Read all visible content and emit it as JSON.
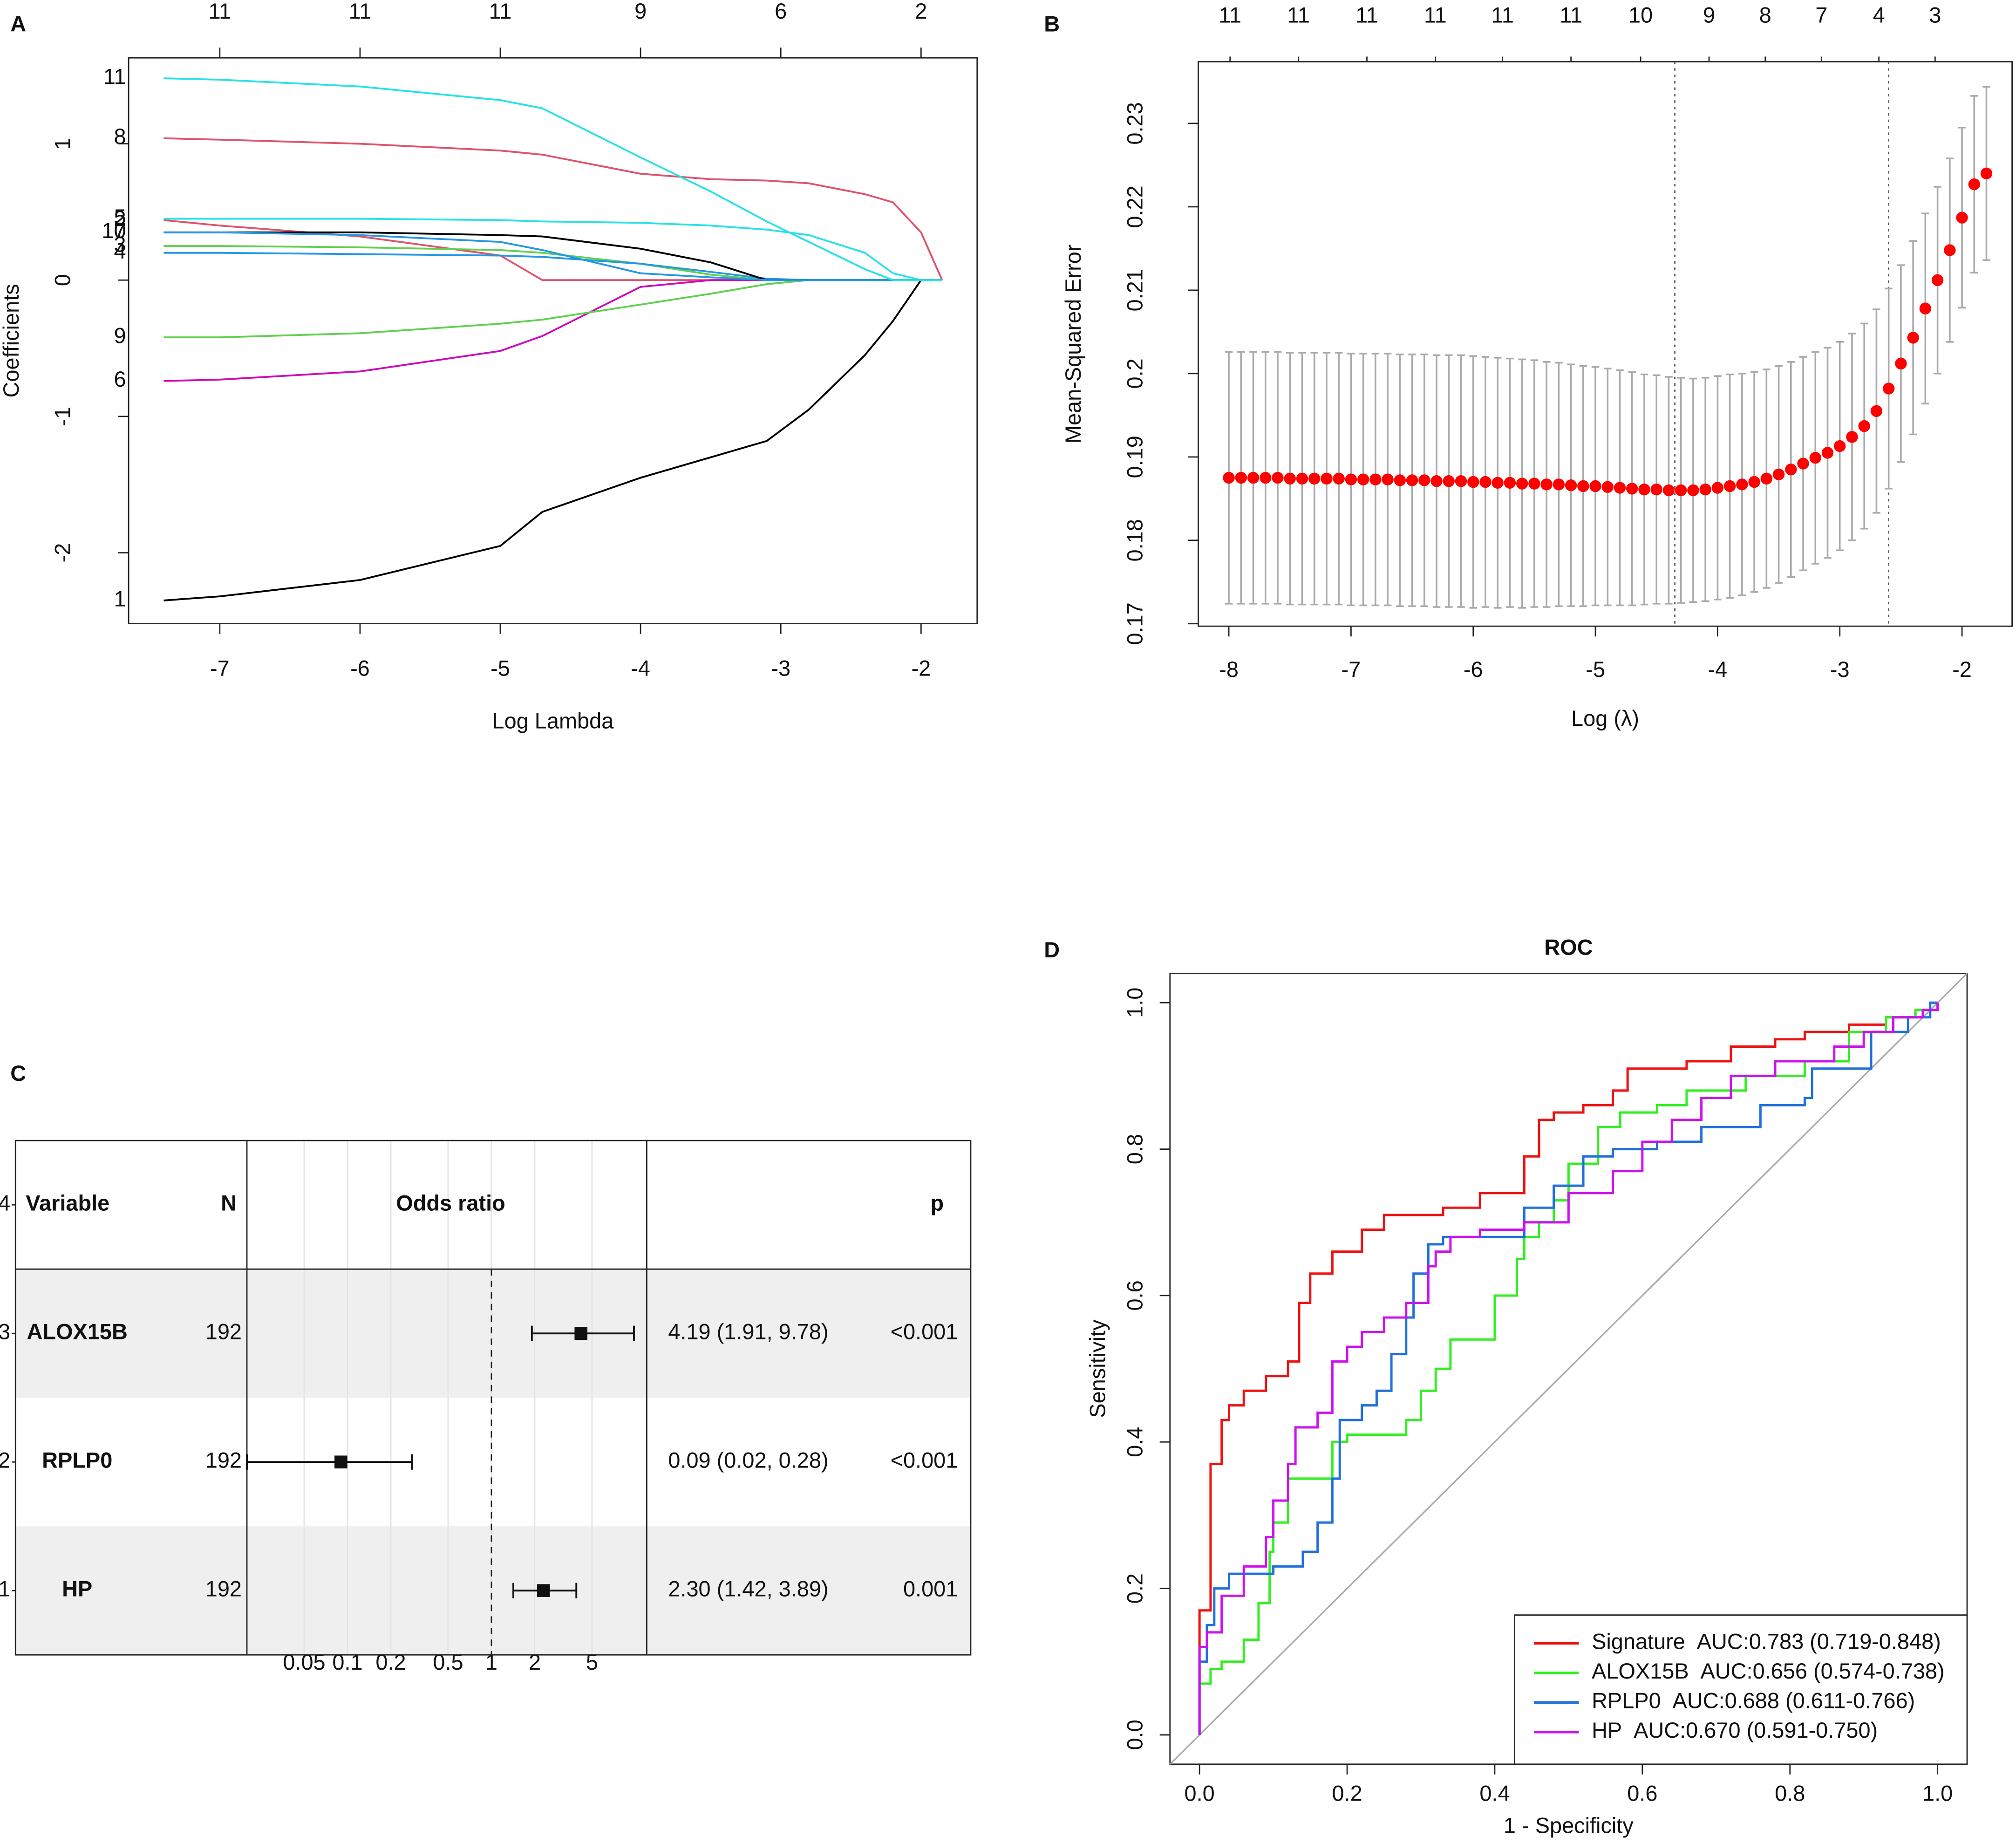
{
  "chart_data": [
    {
      "panel": "A",
      "type": "line",
      "xlabel": "Log Lambda",
      "ylabel": "Coefficients",
      "xlim": [
        -7.65,
        -1.6
      ],
      "ylim": [
        -2.52,
        1.63
      ],
      "xticks": [
        -7,
        -6,
        -5,
        -4,
        -3,
        -2
      ],
      "yticks": [
        -2,
        -1,
        0,
        1
      ],
      "x2ticks": [
        {
          "value": -7,
          "label": "11"
        },
        {
          "value": -6,
          "label": "11"
        },
        {
          "value": -5,
          "label": "11"
        },
        {
          "value": -4,
          "label": "9"
        },
        {
          "value": -3,
          "label": "6"
        },
        {
          "value": -2,
          "label": "2"
        }
      ],
      "x": [
        -7.4,
        -7,
        -6,
        -5,
        -4.7,
        -4,
        -3.5,
        -3.1,
        -2.8,
        -2.4,
        -2.2,
        -2,
        -1.85
      ],
      "series": [
        {
          "name": "1",
          "color": "#000000",
          "values": [
            -2.35,
            -2.32,
            -2.2,
            -1.95,
            -1.7,
            -1.45,
            -1.3,
            -1.18,
            -0.95,
            -0.55,
            -0.3,
            0,
            0
          ]
        },
        {
          "name": "2",
          "color": "#DF536B",
          "values": [
            0.44,
            0.4,
            0.32,
            0.18,
            0,
            0,
            0,
            0,
            0,
            0,
            0,
            0,
            0
          ]
        },
        {
          "name": "3",
          "color": "#61D04F",
          "values": [
            0.25,
            0.25,
            0.24,
            0.22,
            0.2,
            0.12,
            0.04,
            0,
            0,
            0,
            0,
            0,
            0
          ]
        },
        {
          "name": "4",
          "color": "#2297E6",
          "values": [
            0.2,
            0.2,
            0.19,
            0.18,
            0.17,
            0.12,
            0.06,
            0.01,
            0,
            0,
            0,
            0,
            0
          ]
        },
        {
          "name": "5",
          "color": "#28E2E5",
          "values": [
            0.45,
            0.45,
            0.45,
            0.44,
            0.43,
            0.42,
            0.4,
            0.37,
            0.33,
            0.2,
            0.05,
            0,
            0
          ]
        },
        {
          "name": "6",
          "color": "#CD0BBC",
          "values": [
            -0.74,
            -0.73,
            -0.67,
            -0.52,
            -0.41,
            -0.05,
            0,
            0,
            0,
            0,
            0,
            0,
            0
          ]
        },
        {
          "name": "7",
          "color": "#000000",
          "values": [
            0.35,
            0.35,
            0.35,
            0.33,
            0.32,
            0.23,
            0.13,
            0,
            0,
            0,
            0,
            0,
            0
          ]
        },
        {
          "name": "8",
          "color": "#DF536B",
          "values": [
            1.04,
            1.03,
            1.0,
            0.95,
            0.92,
            0.78,
            0.74,
            0.73,
            0.71,
            0.63,
            0.57,
            0.35,
            0
          ]
        },
        {
          "name": "9",
          "color": "#61D04F",
          "values": [
            -0.42,
            -0.42,
            -0.39,
            -0.32,
            -0.29,
            -0.18,
            -0.1,
            -0.03,
            0,
            0,
            0,
            0,
            0
          ]
        },
        {
          "name": "10",
          "color": "#2297E6",
          "values": [
            0.35,
            0.35,
            0.33,
            0.28,
            0.22,
            0.05,
            0.02,
            0,
            0,
            0,
            0,
            0,
            0
          ]
        },
        {
          "name": "11",
          "color": "#28E2E5",
          "values": [
            1.48,
            1.47,
            1.42,
            1.32,
            1.26,
            0.9,
            0.65,
            0.43,
            0.28,
            0.08,
            0,
            0,
            0
          ]
        }
      ]
    },
    {
      "panel": "B",
      "type": "errorbar",
      "xlabel": "Log (λ)",
      "ylabel": "Mean-Squared Error",
      "xlim": [
        -8.25,
        -1.59
      ],
      "ylim": [
        0.1697,
        0.2374
      ],
      "xticks": [
        -8,
        -7,
        -6,
        -5,
        -4,
        -3,
        -2
      ],
      "yticks": [
        0.17,
        0.18,
        0.19,
        0.2,
        0.21,
        0.22,
        0.23
      ],
      "x2ticks": [
        {
          "value": -7.99,
          "label": "11"
        },
        {
          "value": -7.43,
          "label": "11"
        },
        {
          "value": -6.87,
          "label": "11"
        },
        {
          "value": -6.31,
          "label": "11"
        },
        {
          "value": -5.76,
          "label": "11"
        },
        {
          "value": -5.2,
          "label": "11"
        },
        {
          "value": -4.63,
          "label": "10"
        },
        {
          "value": -4.07,
          "label": "9"
        },
        {
          "value": -3.61,
          "label": "8"
        },
        {
          "value": -3.15,
          "label": "7"
        },
        {
          "value": -2.68,
          "label": "4"
        },
        {
          "value": -2.22,
          "label": "3"
        }
      ],
      "vlines": [
        -4.35,
        -2.6
      ],
      "color": "#ff0000",
      "error_color": "#aaaaaa",
      "x": [
        -8,
        -7.9,
        -7.8,
        -7.7,
        -7.6,
        -7.5,
        -7.4,
        -7.3,
        -7.2,
        -7.1,
        -7,
        -6.9,
        -6.8,
        -6.7,
        -6.6,
        -6.5,
        -6.4,
        -6.3,
        -6.2,
        -6.1,
        -6,
        -5.9,
        -5.8,
        -5.7,
        -5.6,
        -5.5,
        -5.4,
        -5.3,
        -5.2,
        -5.1,
        -5,
        -4.9,
        -4.8,
        -4.7,
        -4.6,
        -4.5,
        -4.4,
        -4.3,
        -4.2,
        -4.1,
        -4,
        -3.9,
        -3.8,
        -3.7,
        -3.6,
        -3.5,
        -3.4,
        -3.3,
        -3.2,
        -3.1,
        -3,
        -2.9,
        -2.8,
        -2.7,
        -2.6,
        -2.5,
        -2.4,
        -2.3,
        -2.2,
        -2.1,
        -2,
        -1.9,
        -1.8
      ],
      "values": [
        0.1875,
        0.1875,
        0.1875,
        0.1875,
        0.1875,
        0.1874,
        0.1874,
        0.1874,
        0.1874,
        0.1874,
        0.1873,
        0.1873,
        0.1873,
        0.1873,
        0.1872,
        0.1872,
        0.1872,
        0.1871,
        0.1871,
        0.1871,
        0.187,
        0.187,
        0.1869,
        0.1869,
        0.1868,
        0.1868,
        0.1867,
        0.1867,
        0.1866,
        0.1865,
        0.1865,
        0.1864,
        0.1863,
        0.1862,
        0.1861,
        0.1861,
        0.186,
        0.186,
        0.186,
        0.1861,
        0.1863,
        0.1865,
        0.1867,
        0.187,
        0.1874,
        0.1879,
        0.1885,
        0.1892,
        0.1899,
        0.1905,
        0.1913,
        0.1924,
        0.1937,
        0.1955,
        0.1982,
        0.2012,
        0.2043,
        0.2078,
        0.2112,
        0.2148,
        0.2187,
        0.2227,
        0.224
      ],
      "errors": [
        0.0151,
        0.0151,
        0.0151,
        0.0151,
        0.0151,
        0.0151,
        0.0151,
        0.0151,
        0.0151,
        0.0151,
        0.0151,
        0.0151,
        0.0151,
        0.0151,
        0.0151,
        0.0151,
        0.0151,
        0.0151,
        0.0151,
        0.0151,
        0.0151,
        0.015,
        0.015,
        0.0149,
        0.0149,
        0.0148,
        0.0147,
        0.0146,
        0.0145,
        0.0144,
        0.0143,
        0.0142,
        0.0141,
        0.014,
        0.0138,
        0.0137,
        0.0136,
        0.0135,
        0.0134,
        0.0134,
        0.0134,
        0.0134,
        0.0133,
        0.0132,
        0.0131,
        0.013,
        0.0129,
        0.0128,
        0.0127,
        0.0126,
        0.0125,
        0.0124,
        0.0123,
        0.0122,
        0.012,
        0.0118,
        0.0116,
        0.0114,
        0.0112,
        0.011,
        0.0108,
        0.0106,
        0.0104
      ]
    },
    {
      "panel": "C",
      "type": "forest",
      "columns": [
        "Variable",
        "N",
        "Odds ratio",
        "p"
      ],
      "categories": [
        "ALOX15B",
        "RPLP0",
        "HP"
      ],
      "n": [
        192,
        192,
        192
      ],
      "values": [
        4.19,
        0.09,
        2.3
      ],
      "lower": [
        1.91,
        0.02,
        1.42
      ],
      "upper": [
        9.78,
        0.28,
        3.89
      ],
      "value_labels": [
        "4.19 (1.91, 9.78)",
        "0.09 (0.02, 0.28)",
        "2.30 (1.42, 3.89)"
      ],
      "p": [
        "<0.001",
        "<0.001",
        "0.001"
      ],
      "log_x": true,
      "xlim": [
        0.02,
        12
      ],
      "xticks": [
        0.05,
        0.1,
        0.2,
        0.5,
        1,
        2,
        5
      ],
      "ref": 1,
      "ylim": [
        0.5,
        4.5
      ],
      "yticks": [
        1,
        2,
        3,
        4
      ]
    },
    {
      "panel": "D",
      "type": "roc",
      "title": "ROC",
      "xlabel": "1 - Specificity",
      "ylabel": "Sensitivity",
      "xlim": [
        -0.04,
        1.04
      ],
      "ylim": [
        -0.04,
        1.04
      ],
      "legend": "bottom-right",
      "xticks": [
        {
          "value": 0,
          "label": "0.0"
        },
        0.2,
        0.4,
        0.6,
        0.8,
        {
          "value": 1,
          "label": "1.0"
        }
      ],
      "yticks": [
        {
          "value": 0,
          "label": "0.0"
        },
        0.2,
        0.4,
        0.6,
        0.8,
        {
          "value": 1,
          "label": "1.0"
        }
      ],
      "series": [
        {
          "name": "Signature",
          "label": "AUC:0.783 (0.719-0.848)",
          "color": "#ee1111",
          "x": [
            0,
            0,
            0.015,
            0.015,
            0.03,
            0.03,
            0.04,
            0.04,
            0.06,
            0.06,
            0.09,
            0.09,
            0.12,
            0.12,
            0.135,
            0.135,
            0.15,
            0.15,
            0.18,
            0.18,
            0.22,
            0.22,
            0.25,
            0.25,
            0.33,
            0.33,
            0.38,
            0.38,
            0.44,
            0.44,
            0.46,
            0.46,
            0.48,
            0.48,
            0.52,
            0.52,
            0.56,
            0.56,
            0.58,
            0.58,
            0.66,
            0.66,
            0.72,
            0.72,
            0.78,
            0.78,
            0.82,
            0.82,
            0.88,
            0.88,
            0.93,
            0.93,
            0.97,
            0.97,
            1,
            1
          ],
          "values": [
            0,
            0.17,
            0.17,
            0.37,
            0.37,
            0.43,
            0.43,
            0.45,
            0.45,
            0.47,
            0.47,
            0.49,
            0.49,
            0.51,
            0.51,
            0.59,
            0.59,
            0.63,
            0.63,
            0.66,
            0.66,
            0.69,
            0.69,
            0.71,
            0.71,
            0.72,
            0.72,
            0.74,
            0.74,
            0.79,
            0.79,
            0.84,
            0.84,
            0.85,
            0.85,
            0.86,
            0.86,
            0.88,
            0.88,
            0.91,
            0.91,
            0.92,
            0.92,
            0.94,
            0.94,
            0.95,
            0.95,
            0.96,
            0.96,
            0.97,
            0.97,
            0.98,
            0.98,
            0.99,
            0.99,
            1
          ]
        },
        {
          "name": "ALOX15B",
          "label": "AUC:0.656 (0.574-0.738)",
          "color": "#33ee22",
          "x": [
            0,
            0,
            0.015,
            0.015,
            0.03,
            0.03,
            0.06,
            0.06,
            0.08,
            0.08,
            0.095,
            0.095,
            0.1,
            0.1,
            0.12,
            0.12,
            0.18,
            0.18,
            0.2,
            0.2,
            0.28,
            0.28,
            0.3,
            0.3,
            0.32,
            0.32,
            0.34,
            0.34,
            0.4,
            0.4,
            0.43,
            0.43,
            0.44,
            0.44,
            0.46,
            0.46,
            0.48,
            0.48,
            0.5,
            0.5,
            0.54,
            0.54,
            0.57,
            0.57,
            0.62,
            0.62,
            0.66,
            0.66,
            0.74,
            0.74,
            0.82,
            0.82,
            0.88,
            0.88,
            0.93,
            0.93,
            0.97,
            0.97,
            1,
            1
          ],
          "values": [
            0,
            0.07,
            0.07,
            0.09,
            0.09,
            0.1,
            0.1,
            0.13,
            0.13,
            0.18,
            0.18,
            0.25,
            0.25,
            0.29,
            0.29,
            0.35,
            0.35,
            0.4,
            0.4,
            0.41,
            0.41,
            0.43,
            0.43,
            0.47,
            0.47,
            0.5,
            0.5,
            0.54,
            0.54,
            0.6,
            0.6,
            0.65,
            0.65,
            0.68,
            0.68,
            0.7,
            0.7,
            0.73,
            0.73,
            0.78,
            0.78,
            0.83,
            0.83,
            0.85,
            0.85,
            0.86,
            0.86,
            0.88,
            0.88,
            0.9,
            0.9,
            0.92,
            0.92,
            0.96,
            0.96,
            0.98,
            0.98,
            0.99,
            0.99,
            1
          ]
        },
        {
          "name": "RPLP0",
          "label": "AUC:0.688 (0.611-0.766)",
          "color": "#1f6fdc",
          "x": [
            0,
            0,
            0.01,
            0.01,
            0.02,
            0.02,
            0.04,
            0.04,
            0.1,
            0.1,
            0.14,
            0.14,
            0.16,
            0.16,
            0.18,
            0.18,
            0.19,
            0.19,
            0.22,
            0.22,
            0.24,
            0.24,
            0.26,
            0.26,
            0.28,
            0.28,
            0.29,
            0.29,
            0.31,
            0.31,
            0.33,
            0.33,
            0.44,
            0.44,
            0.48,
            0.48,
            0.52,
            0.52,
            0.56,
            0.56,
            0.62,
            0.62,
            0.68,
            0.68,
            0.76,
            0.76,
            0.82,
            0.82,
            0.83,
            0.83,
            0.91,
            0.91,
            0.96,
            0.96,
            0.99,
            0.99,
            1,
            1
          ],
          "values": [
            0,
            0.1,
            0.1,
            0.15,
            0.15,
            0.2,
            0.2,
            0.22,
            0.22,
            0.23,
            0.23,
            0.25,
            0.25,
            0.29,
            0.29,
            0.35,
            0.35,
            0.43,
            0.43,
            0.45,
            0.45,
            0.47,
            0.47,
            0.52,
            0.52,
            0.57,
            0.57,
            0.63,
            0.63,
            0.67,
            0.67,
            0.68,
            0.68,
            0.72,
            0.72,
            0.75,
            0.75,
            0.79,
            0.79,
            0.8,
            0.8,
            0.81,
            0.81,
            0.83,
            0.83,
            0.86,
            0.86,
            0.87,
            0.87,
            0.91,
            0.91,
            0.96,
            0.96,
            0.98,
            0.98,
            1,
            1,
            1
          ]
        },
        {
          "name": "HP",
          "label": "AUC:0.670 (0.591-0.750)",
          "color": "#cc11ee",
          "x": [
            0,
            0,
            0.01,
            0.01,
            0.03,
            0.03,
            0.06,
            0.06,
            0.09,
            0.09,
            0.1,
            0.1,
            0.12,
            0.12,
            0.13,
            0.13,
            0.16,
            0.16,
            0.18,
            0.18,
            0.2,
            0.2,
            0.22,
            0.22,
            0.25,
            0.25,
            0.28,
            0.28,
            0.31,
            0.31,
            0.32,
            0.32,
            0.34,
            0.34,
            0.38,
            0.38,
            0.44,
            0.44,
            0.5,
            0.5,
            0.56,
            0.56,
            0.6,
            0.6,
            0.64,
            0.64,
            0.68,
            0.68,
            0.72,
            0.72,
            0.78,
            0.78,
            0.86,
            0.86,
            0.9,
            0.9,
            0.94,
            0.94,
            0.98,
            0.98,
            1,
            1
          ],
          "values": [
            0,
            0.12,
            0.12,
            0.14,
            0.14,
            0.19,
            0.19,
            0.23,
            0.23,
            0.27,
            0.27,
            0.32,
            0.32,
            0.37,
            0.37,
            0.42,
            0.42,
            0.44,
            0.44,
            0.51,
            0.51,
            0.53,
            0.53,
            0.55,
            0.55,
            0.57,
            0.57,
            0.59,
            0.59,
            0.64,
            0.64,
            0.66,
            0.66,
            0.68,
            0.68,
            0.69,
            0.69,
            0.7,
            0.7,
            0.74,
            0.74,
            0.77,
            0.77,
            0.81,
            0.81,
            0.84,
            0.84,
            0.87,
            0.87,
            0.9,
            0.9,
            0.92,
            0.92,
            0.94,
            0.94,
            0.96,
            0.96,
            0.98,
            0.98,
            0.99,
            0.99,
            1
          ]
        }
      ]
    }
  ]
}
